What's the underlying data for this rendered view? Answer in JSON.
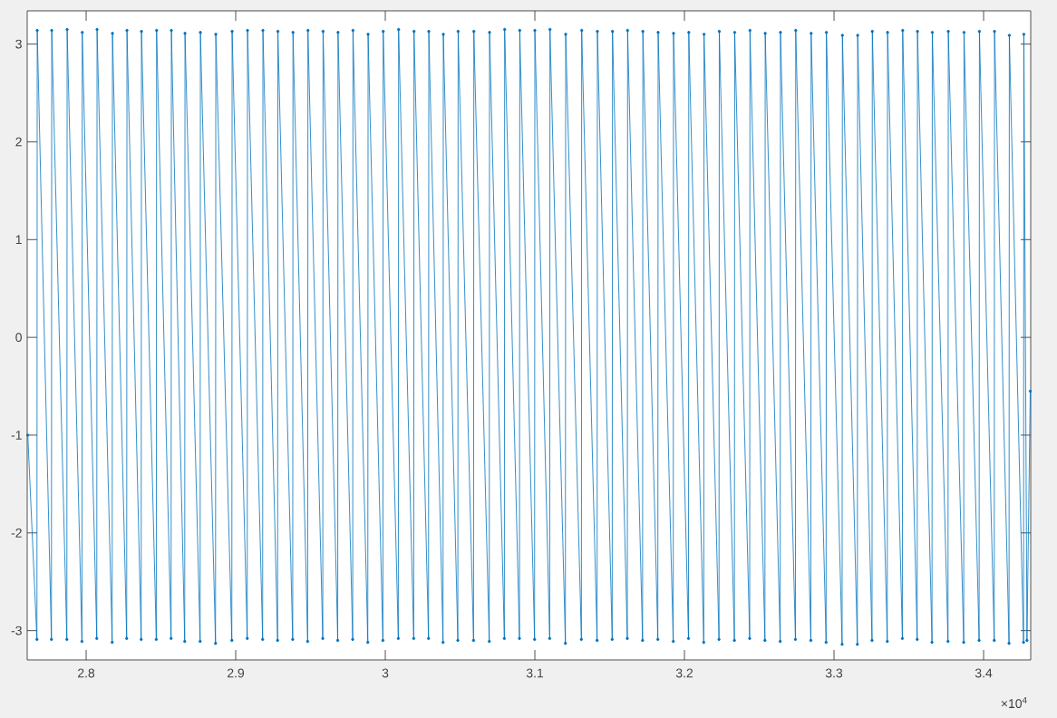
{
  "chart_data": {
    "type": "line",
    "x": [
      2.761,
      2.7671,
      2.7673,
      2.7768,
      2.777,
      2.7871,
      2.7873,
      2.7972,
      2.7974,
      2.8071,
      2.8073,
      2.8174,
      2.8176,
      2.8271,
      2.8273,
      2.8368,
      2.837,
      2.8469,
      2.8471,
      2.8568,
      2.857,
      2.8659,
      2.8661,
      2.8762,
      2.8764,
      2.8865,
      2.8867,
      2.8974,
      2.8976,
      2.9077,
      2.9079,
      2.918,
      2.9182,
      2.928,
      2.9282,
      2.9381,
      2.9383,
      2.9481,
      2.9483,
      2.9582,
      2.9584,
      2.9682,
      2.9684,
      2.9782,
      2.9784,
      2.9883,
      2.9885,
      2.9984,
      2.9986,
      3.0087,
      3.0089,
      3.019,
      3.0192,
      3.0289,
      3.0291,
      3.0386,
      3.0388,
      3.0485,
      3.0487,
      3.059,
      3.0592,
      3.0695,
      3.0697,
      3.0796,
      3.0798,
      3.0897,
      3.0899,
      3.0998,
      3.1,
      3.1099,
      3.1101,
      3.1204,
      3.1206,
      3.1311,
      3.1313,
      3.1416,
      3.1418,
      3.1517,
      3.1519,
      3.1618,
      3.162,
      3.172,
      3.1722,
      3.1822,
      3.1824,
      3.1925,
      3.1927,
      3.2027,
      3.2029,
      3.2129,
      3.2131,
      3.2231,
      3.2233,
      3.2334,
      3.2336,
      3.2436,
      3.2438,
      3.2538,
      3.254,
      3.264,
      3.2642,
      3.2742,
      3.2744,
      3.2845,
      3.2847,
      3.2947,
      3.2949,
      3.3054,
      3.3056,
      3.3156,
      3.3158,
      3.3254,
      3.3256,
      3.3356,
      3.3358,
      3.3457,
      3.3459,
      3.3556,
      3.3558,
      3.3655,
      3.3657,
      3.3762,
      3.3764,
      3.3867,
      3.3869,
      3.397,
      3.3972,
      3.4071,
      3.4073,
      3.417,
      3.4172,
      3.4267,
      3.4269,
      3.429,
      3.4312
    ],
    "values": [
      -1.0,
      -3.09,
      3.14,
      -3.09,
      3.14,
      -3.09,
      3.15,
      -3.11,
      3.12,
      -3.08,
      3.15,
      -3.12,
      3.11,
      -3.08,
      3.14,
      -3.09,
      3.13,
      -3.09,
      3.14,
      -3.08,
      3.14,
      -3.11,
      3.11,
      -3.11,
      3.12,
      -3.13,
      3.1,
      -3.1,
      3.13,
      -3.08,
      3.14,
      -3.09,
      3.14,
      -3.1,
      3.13,
      -3.09,
      3.12,
      -3.11,
      3.14,
      -3.08,
      3.13,
      -3.1,
      3.12,
      -3.09,
      3.14,
      -3.12,
      3.1,
      -3.1,
      3.13,
      -3.08,
      3.15,
      -3.08,
      3.13,
      -3.08,
      3.13,
      -3.12,
      3.1,
      -3.1,
      3.13,
      -3.1,
      3.13,
      -3.11,
      3.12,
      -3.08,
      3.15,
      -3.08,
      3.14,
      -3.09,
      3.14,
      -3.08,
      3.15,
      -3.13,
      3.1,
      -3.09,
      3.14,
      -3.1,
      3.13,
      -3.09,
      3.13,
      -3.08,
      3.14,
      -3.1,
      3.13,
      -3.09,
      3.12,
      -3.11,
      3.11,
      -3.08,
      3.12,
      -3.12,
      3.1,
      -3.09,
      3.13,
      -3.1,
      3.12,
      -3.08,
      3.14,
      -3.1,
      3.11,
      -3.11,
      3.12,
      -3.09,
      3.14,
      -3.1,
      3.11,
      -3.12,
      3.12,
      -3.14,
      3.09,
      -3.14,
      3.09,
      -3.1,
      3.13,
      -3.11,
      3.12,
      -3.08,
      3.14,
      -3.09,
      3.13,
      -3.12,
      3.12,
      -3.11,
      3.13,
      -3.12,
      3.12,
      -3.1,
      3.13,
      -3.1,
      3.13,
      -3.13,
      3.09,
      -3.12,
      3.1,
      -3.1,
      -0.55
    ],
    "color": "#0072bd",
    "marker": "circle",
    "xlim": [
      2.7606,
      3.4315
    ],
    "ylim": [
      -3.3,
      3.34
    ],
    "xticks": [
      2.8,
      2.9,
      3,
      3.1,
      3.2,
      3.3,
      3.4
    ],
    "yticks": [
      -3,
      -2,
      -1,
      0,
      1,
      2,
      3
    ],
    "annotations": [
      "×10$^{4}$"
    ]
  }
}
